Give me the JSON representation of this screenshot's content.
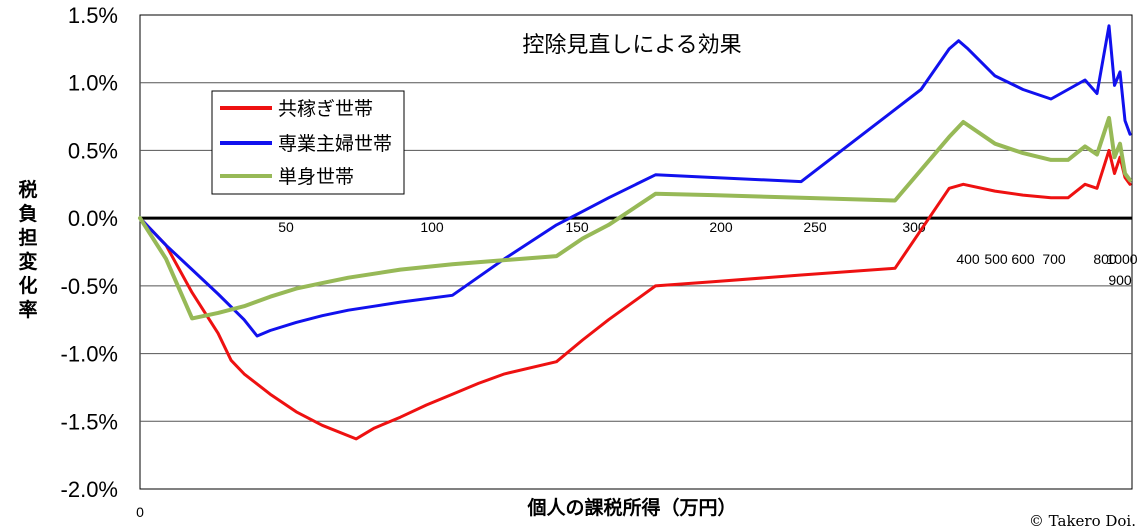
{
  "chart_data": {
    "type": "line",
    "title": "控除見直しによる効果",
    "xlabel": "個人の課税所得（万円）",
    "ylabel": "税負担変化率",
    "ylim": [
      -2.0,
      1.5
    ],
    "y_ticks": [
      "-2.0%",
      "-1.5%",
      "-1.0%",
      "-0.5%",
      "0.0%",
      "0.5%",
      "1.0%",
      "1.5%"
    ],
    "x_tick_labels": [
      "0",
      "50",
      "100",
      "150",
      "200",
      "250",
      "300",
      "400",
      "500",
      "600",
      "700",
      "800",
      "900",
      "1000"
    ],
    "grid": true,
    "legend_placement": "top-left",
    "copyright": "© Takero Doi.",
    "series": [
      {
        "name": "共稼ぎ世帯",
        "color": "#ee1111",
        "points": [
          [
            0,
            0.0
          ],
          [
            10,
            -0.2
          ],
          [
            20,
            -0.55
          ],
          [
            30,
            -0.85
          ],
          [
            35,
            -1.05
          ],
          [
            40,
            -1.15
          ],
          [
            50,
            -1.3
          ],
          [
            60,
            -1.43
          ],
          [
            70,
            -1.53
          ],
          [
            83,
            -1.63
          ],
          [
            90,
            -1.55
          ],
          [
            100,
            -1.47
          ],
          [
            110,
            -1.38
          ],
          [
            120,
            -1.3
          ],
          [
            130,
            -1.22
          ],
          [
            140,
            -1.15
          ],
          [
            160,
            -1.06
          ],
          [
            170,
            -0.9
          ],
          [
            180,
            -0.75
          ],
          [
            198,
            -0.5
          ],
          [
            220,
            -0.47
          ],
          [
            254,
            -0.42
          ],
          [
            290,
            -0.37
          ],
          [
            330,
            0.22
          ],
          [
            345,
            0.25
          ],
          [
            400,
            0.2
          ],
          [
            500,
            0.17
          ],
          [
            600,
            0.15
          ],
          [
            650,
            0.15
          ],
          [
            700,
            0.25
          ],
          [
            750,
            0.22
          ],
          [
            800,
            0.5
          ],
          [
            850,
            0.33
          ],
          [
            900,
            0.45
          ],
          [
            950,
            0.3
          ],
          [
            1000,
            0.25
          ]
        ]
      },
      {
        "name": "専業主婦世帯",
        "color": "#1111ee",
        "points": [
          [
            0,
            0.0
          ],
          [
            10,
            -0.2
          ],
          [
            20,
            -0.38
          ],
          [
            30,
            -0.56
          ],
          [
            40,
            -0.75
          ],
          [
            45,
            -0.87
          ],
          [
            50,
            -0.83
          ],
          [
            60,
            -0.77
          ],
          [
            70,
            -0.72
          ],
          [
            80,
            -0.68
          ],
          [
            90,
            -0.65
          ],
          [
            100,
            -0.62
          ],
          [
            120,
            -0.57
          ],
          [
            140,
            -0.3
          ],
          [
            160,
            -0.05
          ],
          [
            170,
            0.05
          ],
          [
            180,
            0.15
          ],
          [
            198,
            0.32
          ],
          [
            220,
            0.3
          ],
          [
            254,
            0.27
          ],
          [
            300,
            0.95
          ],
          [
            330,
            1.25
          ],
          [
            340,
            1.31
          ],
          [
            350,
            1.25
          ],
          [
            400,
            1.05
          ],
          [
            500,
            0.95
          ],
          [
            600,
            0.88
          ],
          [
            650,
            0.95
          ],
          [
            700,
            1.02
          ],
          [
            750,
            0.92
          ],
          [
            800,
            1.42
          ],
          [
            850,
            0.98
          ],
          [
            900,
            1.08
          ],
          [
            950,
            0.72
          ],
          [
            1000,
            0.62
          ]
        ]
      },
      {
        "name": "単身世帯",
        "color": "#97b957",
        "points": [
          [
            0,
            0.0
          ],
          [
            10,
            -0.3
          ],
          [
            20,
            -0.74
          ],
          [
            30,
            -0.7
          ],
          [
            40,
            -0.65
          ],
          [
            50,
            -0.58
          ],
          [
            60,
            -0.52
          ],
          [
            70,
            -0.48
          ],
          [
            80,
            -0.44
          ],
          [
            90,
            -0.41
          ],
          [
            100,
            -0.38
          ],
          [
            120,
            -0.34
          ],
          [
            140,
            -0.31
          ],
          [
            160,
            -0.28
          ],
          [
            170,
            -0.15
          ],
          [
            180,
            -0.05
          ],
          [
            198,
            0.18
          ],
          [
            220,
            0.17
          ],
          [
            254,
            0.15
          ],
          [
            290,
            0.13
          ],
          [
            330,
            0.6
          ],
          [
            345,
            0.71
          ],
          [
            400,
            0.55
          ],
          [
            500,
            0.48
          ],
          [
            600,
            0.43
          ],
          [
            650,
            0.43
          ],
          [
            700,
            0.53
          ],
          [
            750,
            0.47
          ],
          [
            800,
            0.74
          ],
          [
            850,
            0.45
          ],
          [
            900,
            0.55
          ],
          [
            950,
            0.33
          ],
          [
            1000,
            0.28
          ]
        ]
      }
    ]
  }
}
